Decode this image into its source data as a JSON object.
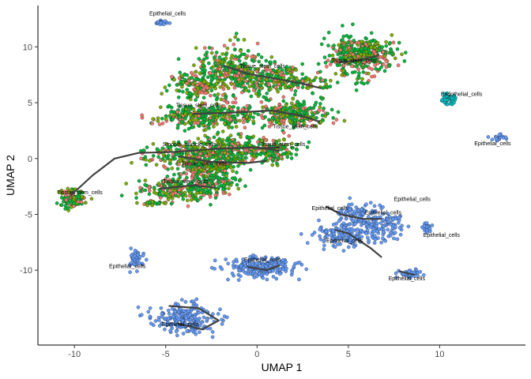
{
  "chart_data": {
    "type": "scatter",
    "xlabel": "UMAP 1",
    "ylabel": "UMAP 2",
    "xlim": [
      -12,
      14.7
    ],
    "ylim": [
      -16.7,
      13.7
    ],
    "x_ticks": [
      -10,
      -5,
      0,
      5,
      10
    ],
    "y_ticks": [
      -10,
      -5,
      0,
      5,
      10
    ],
    "x_tick_labels": [
      "-10",
      "-5",
      "0",
      "5",
      "10"
    ],
    "y_tick_labels": [
      "-10",
      "-5",
      "0",
      "5",
      "10"
    ],
    "grid": false,
    "legend": "none",
    "colors": {
      "stroma_red": "#F8766D",
      "stroma_olive": "#7CAE00",
      "stroma_green": "#00BA38",
      "epithelial_blue": "#619CFF",
      "endothelial_teal": "#00BFC4",
      "trajectory": "#404040"
    },
    "clusters": [
      {
        "cx": -5.2,
        "cy": 12.2,
        "sx": 0.15,
        "sy": 0.1,
        "n": 25,
        "palette": "epi"
      },
      {
        "cx": -1.5,
        "cy": 8.0,
        "sx": 0.9,
        "sy": 1.1,
        "n": 260,
        "palette": "stroma"
      },
      {
        "cx": 0.5,
        "cy": 7.2,
        "sx": 1.0,
        "sy": 0.7,
        "n": 200,
        "palette": "stroma"
      },
      {
        "cx": 2.3,
        "cy": 6.8,
        "sx": 0.8,
        "sy": 0.4,
        "n": 90,
        "palette": "stroma"
      },
      {
        "cx": -3.5,
        "cy": 6.5,
        "sx": 0.7,
        "sy": 0.6,
        "n": 130,
        "palette": "stroma"
      },
      {
        "cx": -3.8,
        "cy": 3.8,
        "sx": 0.9,
        "sy": 0.5,
        "n": 180,
        "palette": "stroma"
      },
      {
        "cx": -1.5,
        "cy": 4.0,
        "sx": 0.8,
        "sy": 0.6,
        "n": 150,
        "palette": "stroma"
      },
      {
        "cx": 1.8,
        "cy": 4.2,
        "sx": 1.0,
        "sy": 0.5,
        "n": 170,
        "palette": "stroma"
      },
      {
        "cx": 2.2,
        "cy": 3.4,
        "sx": 0.9,
        "sy": 0.3,
        "n": 80,
        "palette": "stroma"
      },
      {
        "cx": -3.8,
        "cy": 0.3,
        "sx": 1.2,
        "sy": 0.6,
        "n": 230,
        "palette": "stroma"
      },
      {
        "cx": -1.5,
        "cy": 0.8,
        "sx": 1.0,
        "sy": 0.7,
        "n": 230,
        "palette": "stroma"
      },
      {
        "cx": 0.8,
        "cy": 0.7,
        "sx": 0.7,
        "sy": 0.6,
        "n": 140,
        "palette": "stroma"
      },
      {
        "cx": -2.8,
        "cy": -1.0,
        "sx": 0.9,
        "sy": 0.5,
        "n": 170,
        "palette": "stroma"
      },
      {
        "cx": -4.3,
        "cy": -2.8,
        "sx": 1.0,
        "sy": 0.6,
        "n": 180,
        "palette": "stroma"
      },
      {
        "cx": -2.5,
        "cy": -2.4,
        "sx": 0.7,
        "sy": 0.4,
        "n": 100,
        "palette": "stroma"
      },
      {
        "cx": -10.1,
        "cy": -3.6,
        "sx": 0.35,
        "sy": 0.4,
        "n": 90,
        "palette": "stroma"
      },
      {
        "cx": 5.3,
        "cy": 9.2,
        "sx": 0.7,
        "sy": 0.9,
        "n": 240,
        "palette": "stroma"
      },
      {
        "cx": 6.3,
        "cy": 9.3,
        "sx": 0.7,
        "sy": 0.8,
        "n": 180,
        "palette": "stroma"
      },
      {
        "cx": -5.6,
        "cy": -4.0,
        "sx": 0.4,
        "sy": 0.1,
        "n": 25,
        "palette": "stroma"
      },
      {
        "cx": 10.5,
        "cy": 5.3,
        "sx": 0.2,
        "sy": 0.25,
        "n": 35,
        "palette": "endo"
      },
      {
        "cx": 13.2,
        "cy": 1.9,
        "sx": 0.25,
        "sy": 0.15,
        "n": 20,
        "palette": "epi"
      },
      {
        "cx": 5.5,
        "cy": -5.0,
        "sx": 0.6,
        "sy": 0.5,
        "n": 80,
        "palette": "epi"
      },
      {
        "cx": 4.6,
        "cy": -6.8,
        "sx": 0.7,
        "sy": 0.5,
        "n": 120,
        "palette": "epi"
      },
      {
        "cx": 6.5,
        "cy": -6.3,
        "sx": 0.7,
        "sy": 0.6,
        "n": 100,
        "palette": "epi"
      },
      {
        "cx": 7.3,
        "cy": -5.5,
        "sx": 0.3,
        "sy": 0.3,
        "n": 30,
        "palette": "epi"
      },
      {
        "cx": 9.3,
        "cy": -6.2,
        "sx": 0.15,
        "sy": 0.25,
        "n": 25,
        "palette": "epi"
      },
      {
        "cx": 8.4,
        "cy": -10.3,
        "sx": 0.35,
        "sy": 0.2,
        "n": 40,
        "palette": "epi"
      },
      {
        "cx": 0.2,
        "cy": -9.7,
        "sx": 0.9,
        "sy": 0.45,
        "n": 220,
        "palette": "epi"
      },
      {
        "cx": -6.6,
        "cy": -9.0,
        "sx": 0.2,
        "sy": 0.4,
        "n": 45,
        "palette": "epi"
      },
      {
        "cx": -4.0,
        "cy": -14.3,
        "sx": 0.9,
        "sy": 0.7,
        "n": 220,
        "palette": "epi"
      }
    ],
    "trajectories": [
      [
        [
          -10.2,
          -3.3
        ],
        [
          -9.0,
          -1.5
        ],
        [
          -7.8,
          0.0
        ],
        [
          -6.5,
          0.5
        ],
        [
          -4.5,
          0.6
        ],
        [
          -2.0,
          0.9
        ],
        [
          0.0,
          1.0
        ],
        [
          1.2,
          0.7
        ]
      ],
      [
        [
          -4.3,
          0.2
        ],
        [
          -2.5,
          -0.3
        ],
        [
          -0.5,
          -0.4
        ],
        [
          0.5,
          -0.2
        ]
      ],
      [
        [
          -5.3,
          -2.7
        ],
        [
          -3.5,
          -2.4
        ],
        [
          -2.3,
          -2.6
        ]
      ],
      [
        [
          -1.8,
          8.3
        ],
        [
          -0.5,
          7.6
        ],
        [
          1.2,
          7.1
        ],
        [
          2.5,
          6.7
        ],
        [
          3.5,
          6.3
        ]
      ],
      [
        [
          -3.5,
          4.0
        ],
        [
          -1.5,
          4.1
        ],
        [
          0.8,
          4.3
        ],
        [
          2.5,
          3.8
        ],
        [
          3.4,
          3.3
        ]
      ],
      [
        [
          4.5,
          8.6
        ],
        [
          5.6,
          8.8
        ],
        [
          6.6,
          9.2
        ]
      ],
      [
        [
          0.1,
          0.9
        ],
        [
          1.2,
          1.0
        ]
      ],
      [
        [
          3.8,
          -4.3
        ],
        [
          4.6,
          -5.0
        ],
        [
          5.8,
          -5.4
        ],
        [
          6.8,
          -5.4
        ]
      ],
      [
        [
          4.3,
          -6.4
        ],
        [
          5.0,
          -6.7
        ],
        [
          6.2,
          -8.0
        ],
        [
          6.8,
          -8.8
        ]
      ],
      [
        [
          -0.5,
          -9.7
        ],
        [
          0.5,
          -10.0
        ],
        [
          1.2,
          -9.6
        ]
      ],
      [
        [
          7.8,
          -10.1
        ],
        [
          8.6,
          -10.4
        ]
      ],
      [
        [
          -4.8,
          -13.2
        ],
        [
          -3.2,
          -13.4
        ],
        [
          -2.1,
          -14.5
        ],
        [
          -3.0,
          -15.3
        ],
        [
          -4.3,
          -14.8
        ]
      ]
    ],
    "annotations": [
      {
        "text": "Epithelial_cells",
        "x": -4.9,
        "y": 12.8
      },
      {
        "text": "Tissue_stem_cells",
        "x": 0.3,
        "y": 8.1
      },
      {
        "text": "Tissue_stem_cells",
        "x": 5.3,
        "y": 8.6
      },
      {
        "text": "Endothelial_cells",
        "x": 11.2,
        "y": 5.6
      },
      {
        "text": "Tissue_stem_cells",
        "x": -3.2,
        "y": 4.6
      },
      {
        "text": "Tissue_stem_cells",
        "x": 2.1,
        "y": 2.7
      },
      {
        "text": "Epithelial_cells",
        "x": 12.9,
        "y": 1.2
      },
      {
        "text": "Smooth_muscle_cells",
        "x": -3.7,
        "y": 1.1
      },
      {
        "text": "Tissue_stem_cells",
        "x": 1.4,
        "y": 1.1
      },
      {
        "text": "Tissue_stem_cells",
        "x": -2.9,
        "y": -0.6
      },
      {
        "text": "Tissue_stem_cells",
        "x": -3.9,
        "y": -2.2
      },
      {
        "text": "Tissue_stem_cells",
        "x": -9.7,
        "y": -3.2
      },
      {
        "text": "Epithelial_cells",
        "x": 8.5,
        "y": -3.8
      },
      {
        "text": "Epithelial_cells",
        "x": 4.0,
        "y": -4.6
      },
      {
        "text": "Epithelial_cells",
        "x": 6.9,
        "y": -5.0
      },
      {
        "text": "Epithelial_cells",
        "x": 10.1,
        "y": -7.0
      },
      {
        "text": "Epithelial_cells",
        "x": 4.8,
        "y": -7.5
      },
      {
        "text": "Epithelial_cells",
        "x": 0.3,
        "y": -9.2
      },
      {
        "text": "Epithelial_cells",
        "x": -7.1,
        "y": -9.8
      },
      {
        "text": "Epithelial_cells",
        "x": 8.2,
        "y": -10.9
      },
      {
        "text": "Epithelial_cells",
        "x": -4.2,
        "y": -15.0
      }
    ]
  }
}
